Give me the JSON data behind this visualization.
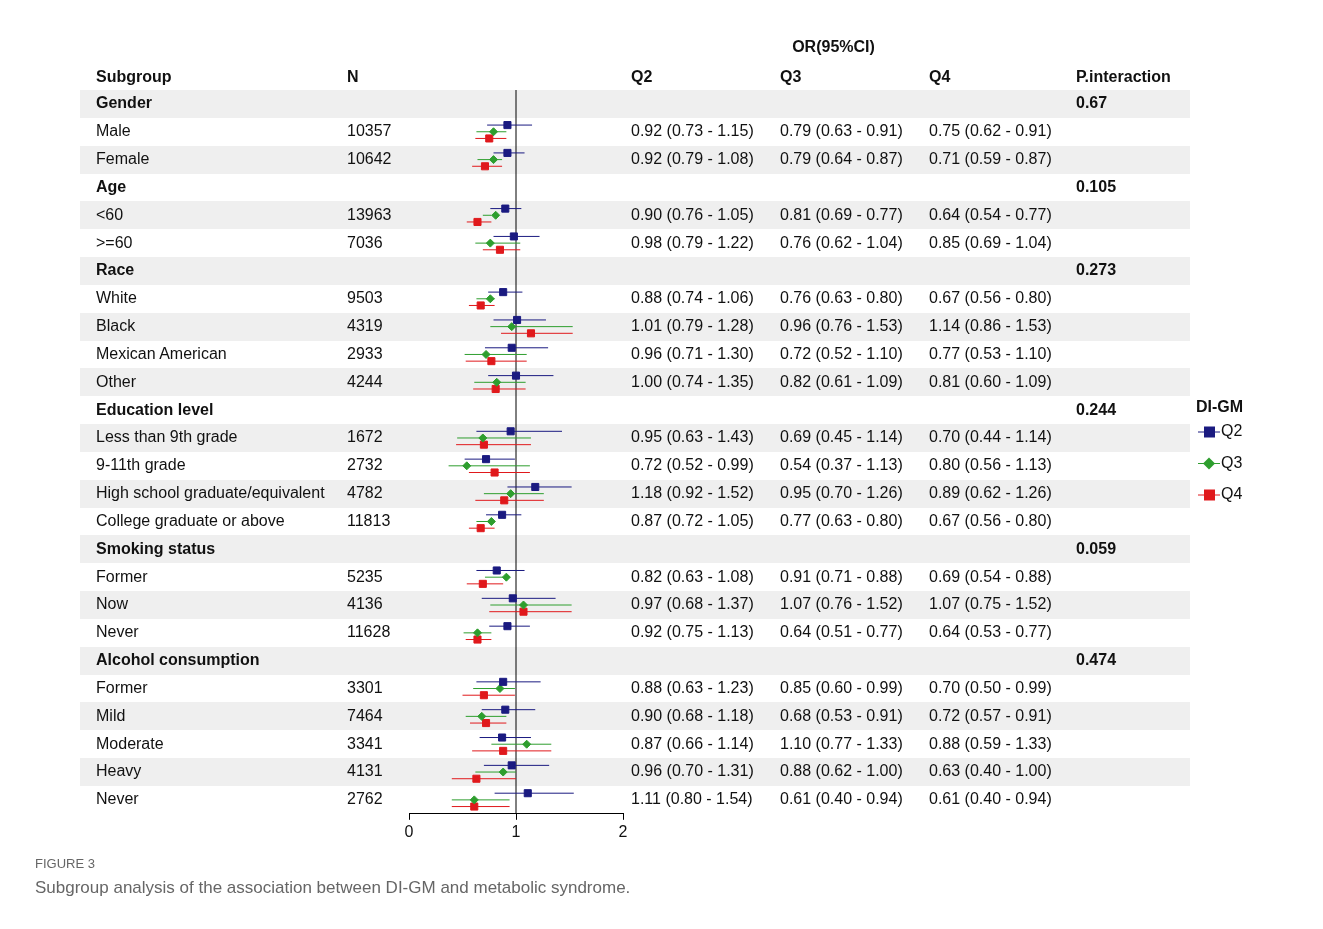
{
  "chart_data": {
    "type": "scatter",
    "orientation": "horizontal",
    "categories": [
      "Gender",
      "Male",
      "Female",
      "Age",
      "<60",
      ">=60",
      "Race",
      "White",
      "Black",
      "Mexican American",
      "Other",
      "Education level",
      "Less than 9th grade",
      "9-11th grade",
      "High school graduate/equivalent",
      "College graduate or above",
      "Smoking status",
      "Former",
      "Now",
      "Never",
      "Alcohol consumption",
      "Former",
      "Mild",
      "Moderate",
      "Heavy",
      "Never"
    ],
    "series": [
      {
        "name": "Q2",
        "color": "#1a1a80",
        "marker": "square",
        "values": [
          null,
          0.92,
          0.92,
          null,
          0.9,
          0.98,
          null,
          0.88,
          1.01,
          0.96,
          1.0,
          null,
          0.95,
          0.72,
          1.18,
          0.87,
          null,
          0.82,
          0.97,
          0.92,
          null,
          0.88,
          0.9,
          0.87,
          0.96,
          1.11
        ],
        "errors": [
          null,
          [
            0.73,
            1.15
          ],
          [
            0.79,
            1.08
          ],
          null,
          [
            0.76,
            1.05
          ],
          [
            0.79,
            1.22
          ],
          null,
          [
            0.74,
            1.06
          ],
          [
            0.79,
            1.28
          ],
          [
            0.71,
            1.3
          ],
          [
            0.74,
            1.35
          ],
          null,
          [
            0.63,
            1.43
          ],
          [
            0.52,
            0.99
          ],
          [
            0.92,
            1.52
          ],
          [
            0.72,
            1.05
          ],
          null,
          [
            0.63,
            1.08
          ],
          [
            0.68,
            1.37
          ],
          [
            0.75,
            1.13
          ],
          null,
          [
            0.63,
            1.23
          ],
          [
            0.68,
            1.18
          ],
          [
            0.66,
            1.14
          ],
          [
            0.7,
            1.31
          ],
          [
            0.8,
            1.54
          ]
        ],
        "value_labels": [
          null,
          "0.92 (0.73 - 1.15)",
          "0.92 (0.79 - 1.08)",
          null,
          "0.90 (0.76 - 1.05)",
          "0.98 (0.79 - 1.22)",
          null,
          "0.88 (0.74 - 1.06)",
          "1.01 (0.79 - 1.28)",
          "0.96 (0.71 - 1.30)",
          "1.00 (0.74 - 1.35)",
          null,
          "0.95 (0.63 - 1.43)",
          "0.72 (0.52 - 0.99)",
          "1.18 (0.92 - 1.52)",
          "0.87 (0.72 - 1.05)",
          null,
          "0.82 (0.63 - 1.08)",
          "0.97 (0.68 - 1.37)",
          "0.92 (0.75 - 1.13)",
          null,
          "0.88 (0.63 - 1.23)",
          "0.90 (0.68 - 1.18)",
          "0.87 (0.66 - 1.14)",
          "0.96 (0.70 - 1.31)",
          "1.11 (0.80 - 1.54)"
        ]
      },
      {
        "name": "Q3",
        "color": "#2e9e2e",
        "marker": "diamond",
        "values": [
          null,
          0.79,
          0.79,
          null,
          0.81,
          0.76,
          null,
          0.76,
          0.96,
          0.72,
          0.82,
          null,
          0.69,
          0.54,
          0.95,
          0.77,
          null,
          0.91,
          1.07,
          0.64,
          null,
          0.85,
          0.68,
          1.1,
          0.88,
          0.61
        ],
        "errors": [
          null,
          [
            0.63,
            0.91
          ],
          [
            0.64,
            0.87
          ],
          null,
          [
            0.69,
            0.77
          ],
          [
            0.62,
            1.04
          ],
          null,
          [
            0.63,
            0.8
          ],
          [
            0.76,
            1.53
          ],
          [
            0.52,
            1.1
          ],
          [
            0.61,
            1.09
          ],
          null,
          [
            0.45,
            1.14
          ],
          [
            0.37,
            1.13
          ],
          [
            0.7,
            1.26
          ],
          [
            0.63,
            0.8
          ],
          null,
          [
            0.71,
            0.88
          ],
          [
            0.76,
            1.52
          ],
          [
            0.51,
            0.77
          ],
          null,
          [
            0.6,
            0.99
          ],
          [
            0.53,
            0.91
          ],
          [
            0.77,
            1.33
          ],
          [
            0.62,
            1.0
          ],
          [
            0.4,
            0.94
          ]
        ],
        "value_labels": [
          null,
          "0.79 (0.63 - 0.91)",
          "0.79 (0.64 - 0.87)",
          null,
          "0.81 (0.69 - 0.77)",
          "0.76 (0.62 - 1.04)",
          null,
          "0.76 (0.63 - 0.80)",
          "0.96 (0.76 - 1.53)",
          "0.72 (0.52 - 1.10)",
          "0.82 (0.61 - 1.09)",
          null,
          "0.69 (0.45 - 1.14)",
          "0.54 (0.37 - 1.13)",
          "0.95 (0.70 - 1.26)",
          "0.77 (0.63 - 0.80)",
          null,
          "0.91 (0.71 - 0.88)",
          "1.07 (0.76 - 1.52)",
          "0.64 (0.51 - 0.77)",
          null,
          "0.85 (0.60 - 0.99)",
          "0.68 (0.53 - 0.91)",
          "1.10 (0.77 - 1.33)",
          "0.88 (0.62 - 1.00)",
          "0.61 (0.40 - 0.94)"
        ]
      },
      {
        "name": "Q4",
        "color": "#e0191c",
        "marker": "square",
        "values": [
          null,
          0.75,
          0.71,
          null,
          0.64,
          0.85,
          null,
          0.67,
          1.14,
          0.77,
          0.81,
          null,
          0.7,
          0.8,
          0.89,
          0.67,
          null,
          0.69,
          1.07,
          0.64,
          null,
          0.7,
          0.72,
          0.88,
          0.63,
          0.61
        ],
        "errors": [
          null,
          [
            0.62,
            0.91
          ],
          [
            0.59,
            0.87
          ],
          null,
          [
            0.54,
            0.77
          ],
          [
            0.69,
            1.04
          ],
          null,
          [
            0.56,
            0.8
          ],
          [
            0.86,
            1.53
          ],
          [
            0.53,
            1.1
          ],
          [
            0.6,
            1.09
          ],
          null,
          [
            0.44,
            1.14
          ],
          [
            0.56,
            1.13
          ],
          [
            0.62,
            1.26
          ],
          [
            0.56,
            0.8
          ],
          null,
          [
            0.54,
            0.88
          ],
          [
            0.75,
            1.52
          ],
          [
            0.53,
            0.77
          ],
          null,
          [
            0.5,
            0.99
          ],
          [
            0.57,
            0.91
          ],
          [
            0.59,
            1.33
          ],
          [
            0.4,
            1.0
          ],
          [
            0.4,
            0.94
          ]
        ],
        "value_labels": [
          null,
          "0.75 (0.62 - 0.91)",
          "0.71 (0.59 - 0.87)",
          null,
          "0.64 (0.54 - 0.77)",
          "0.85 (0.69 - 1.04)",
          null,
          "0.67 (0.56 - 0.80)",
          "1.14 (0.86 - 1.53)",
          "0.77 (0.53 - 1.10)",
          "0.81 (0.60 - 1.09)",
          null,
          "0.70 (0.44 - 1.14)",
          "0.80 (0.56 - 1.13)",
          "0.89 (0.62 - 1.26)",
          "0.67 (0.56 - 0.80)",
          null,
          "0.69 (0.54 - 0.88)",
          "1.07 (0.75 - 1.52)",
          "0.64 (0.53 - 0.77)",
          null,
          "0.70 (0.50 - 0.99)",
          "0.72 (0.57 - 0.91)",
          "0.88 (0.59 - 1.33)",
          "0.63 (0.40 - 1.00)",
          "0.61 (0.40 - 0.94)"
        ]
      }
    ],
    "xlim": [
      0,
      2
    ],
    "xticks": [
      0,
      1,
      2
    ],
    "grid": false,
    "legend": "right",
    "legend_title": "DI-GM",
    "ref_lines": [
      {
        "axis": "x",
        "value": 1,
        "color": "#000000"
      }
    ],
    "annotations": [
      "Subgroup",
      "N",
      "OR(95%CI)",
      "P.interaction",
      "0.67",
      "10357",
      "10642",
      "0.105",
      "13963",
      "7036",
      "0.273",
      "9503",
      "4319",
      "2933",
      "4244",
      "0.244",
      "1672",
      "2732",
      "4782",
      "11813",
      "0.059",
      "5235",
      "4136",
      "11628",
      "0.474",
      "3301",
      "7464",
      "3341",
      "4131",
      "2762",
      "FIGURE 3",
      "Subgroup analysis of the association between DI-GM and metabolic syndrome."
    ]
  }
}
